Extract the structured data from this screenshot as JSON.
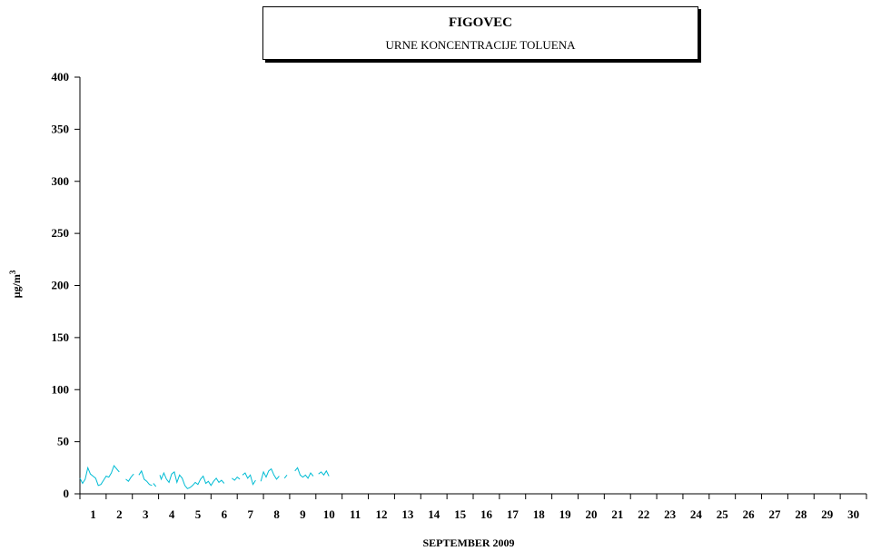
{
  "chart_data": {
    "type": "line",
    "title": "FIGOVEC",
    "subtitle": "URNE KONCENTRACIJE TOLUENA",
    "xlabel": "SEPTEMBER 2009",
    "ylabel": "µg/m",
    "ylabel_superscript": "3",
    "xlim": [
      1,
      31
    ],
    "ylim": [
      0,
      400
    ],
    "yticks": [
      0,
      50,
      100,
      150,
      200,
      250,
      300,
      350,
      400
    ],
    "xticks": [
      1,
      2,
      3,
      4,
      5,
      6,
      7,
      8,
      9,
      10,
      11,
      12,
      13,
      14,
      15,
      16,
      17,
      18,
      19,
      20,
      21,
      22,
      23,
      24,
      25,
      26,
      27,
      28,
      29,
      30
    ],
    "grid": false,
    "line_color": "#00bcd4",
    "series": [
      {
        "segments": [
          [
            [
              1.0,
              15
            ],
            [
              1.1,
              10
            ],
            [
              1.2,
              14
            ],
            [
              1.3,
              25
            ],
            [
              1.4,
              19
            ],
            [
              1.5,
              17
            ],
            [
              1.6,
              15
            ],
            [
              1.7,
              8
            ],
            [
              1.8,
              9
            ],
            [
              1.9,
              13
            ],
            [
              2.0,
              17
            ],
            [
              2.1,
              16
            ],
            [
              2.2,
              20
            ],
            [
              2.3,
              27
            ],
            [
              2.4,
              24
            ],
            [
              2.5,
              21
            ]
          ],
          [
            [
              2.75,
              14
            ],
            [
              2.85,
              12
            ],
            [
              2.95,
              16
            ],
            [
              3.05,
              19
            ]
          ],
          [
            [
              3.25,
              18
            ],
            [
              3.35,
              22
            ],
            [
              3.45,
              14
            ],
            [
              3.55,
              12
            ],
            [
              3.65,
              9
            ],
            [
              3.75,
              8
            ]
          ],
          [
            [
              3.8,
              10
            ],
            [
              3.9,
              7
            ]
          ],
          [
            [
              4.05,
              18
            ],
            [
              4.1,
              14
            ],
            [
              4.2,
              20
            ],
            [
              4.3,
              14
            ],
            [
              4.4,
              11
            ],
            [
              4.5,
              19
            ],
            [
              4.6,
              21
            ],
            [
              4.7,
              11
            ],
            [
              4.8,
              18
            ],
            [
              4.9,
              15
            ],
            [
              5.0,
              8
            ],
            [
              5.1,
              5
            ],
            [
              5.2,
              6
            ],
            [
              5.3,
              8
            ],
            [
              5.4,
              11
            ],
            [
              5.5,
              9
            ],
            [
              5.6,
              14
            ],
            [
              5.7,
              17
            ],
            [
              5.8,
              10
            ],
            [
              5.9,
              12
            ],
            [
              6.0,
              8
            ],
            [
              6.1,
              12
            ],
            [
              6.2,
              15
            ],
            [
              6.3,
              11
            ],
            [
              6.4,
              13
            ],
            [
              6.5,
              10
            ]
          ],
          [
            [
              6.8,
              15
            ],
            [
              6.9,
              13
            ],
            [
              7.0,
              16
            ],
            [
              7.1,
              14
            ]
          ],
          [
            [
              7.2,
              18
            ],
            [
              7.3,
              20
            ],
            [
              7.4,
              15
            ],
            [
              7.5,
              18
            ],
            [
              7.6,
              9
            ],
            [
              7.7,
              13
            ]
          ],
          [
            [
              7.9,
              12
            ],
            [
              8.0,
              21
            ],
            [
              8.1,
              16
            ],
            [
              8.2,
              22
            ],
            [
              8.3,
              24
            ],
            [
              8.4,
              18
            ],
            [
              8.5,
              14
            ],
            [
              8.6,
              17
            ]
          ],
          [
            [
              8.8,
              15
            ],
            [
              8.9,
              18
            ]
          ],
          [
            [
              9.2,
              22
            ],
            [
              9.3,
              25
            ],
            [
              9.4,
              18
            ],
            [
              9.5,
              16
            ],
            [
              9.6,
              18
            ],
            [
              9.7,
              15
            ],
            [
              9.8,
              20
            ],
            [
              9.9,
              17
            ]
          ],
          [
            [
              10.1,
              19
            ],
            [
              10.2,
              21
            ],
            [
              10.3,
              18
            ],
            [
              10.4,
              22
            ],
            [
              10.5,
              17
            ]
          ]
        ]
      }
    ]
  }
}
